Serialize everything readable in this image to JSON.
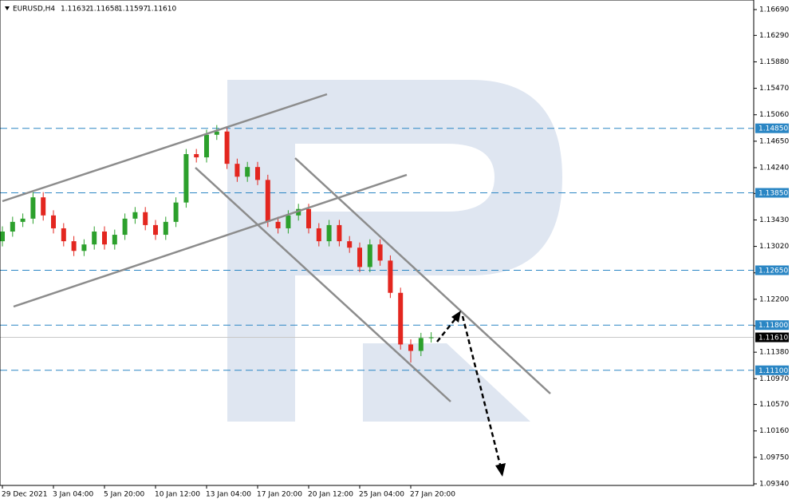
{
  "chart_data": {
    "type": "candlestick",
    "title": "EURUSD,H4",
    "quote": [
      "1.11632",
      "1.11658",
      "1.11597",
      "1.11610"
    ],
    "categories": [
      "29 Dec 2021",
      null,
      null,
      null,
      null,
      "3 Jan 04:00",
      null,
      null,
      null,
      null,
      "5 Jan 20:00",
      null,
      null,
      null,
      null,
      "10 Jan 12:00",
      null,
      null,
      null,
      null,
      "13 Jan 04:00",
      null,
      null,
      null,
      null,
      "17 Jan 20:00",
      null,
      null,
      null,
      null,
      "20 Jan 12:00",
      null,
      null,
      null,
      null,
      "25 Jan 04:00",
      null,
      null,
      null,
      null,
      "27 Jan 20:00",
      null,
      null
    ],
    "open": [
      1.131,
      1.1325,
      1.134,
      1.1345,
      1.1378,
      1.135,
      1.133,
      1.131,
      1.1295,
      1.1305,
      1.1325,
      1.1305,
      1.132,
      1.1345,
      1.1355,
      1.1335,
      1.132,
      1.134,
      1.137,
      1.1445,
      1.144,
      1.1475,
      1.148,
      1.143,
      1.141,
      1.1425,
      1.1405,
      1.134,
      1.133,
      1.135,
      1.136,
      1.133,
      1.131,
      1.1335,
      1.131,
      1.13,
      1.127,
      1.1305,
      1.128,
      1.123,
      1.115,
      1.114,
      1.116
    ],
    "high": [
      1.1333,
      1.1348,
      1.1353,
      1.1386,
      1.1386,
      1.1358,
      1.1338,
      1.1318,
      1.1313,
      1.1333,
      1.1333,
      1.1328,
      1.1353,
      1.1363,
      1.1363,
      1.1343,
      1.1348,
      1.1378,
      1.1453,
      1.1453,
      1.1483,
      1.149,
      1.1488,
      1.1438,
      1.1433,
      1.1433,
      1.1413,
      1.1348,
      1.1358,
      1.1368,
      1.1368,
      1.1338,
      1.1343,
      1.1343,
      1.1318,
      1.1308,
      1.1313,
      1.1313,
      1.1288,
      1.1238,
      1.1158,
      1.1168,
      1.1169
    ],
    "low": [
      1.1302,
      1.1317,
      1.1332,
      1.1337,
      1.1342,
      1.1322,
      1.1302,
      1.1287,
      1.1287,
      1.1297,
      1.1297,
      1.1297,
      1.1312,
      1.1337,
      1.1327,
      1.1312,
      1.1312,
      1.1332,
      1.1362,
      1.1432,
      1.1432,
      1.1467,
      1.1422,
      1.1402,
      1.1402,
      1.1397,
      1.1332,
      1.1322,
      1.1322,
      1.1342,
      1.1322,
      1.1302,
      1.1302,
      1.1302,
      1.1292,
      1.1262,
      1.1262,
      1.1272,
      1.1222,
      1.1142,
      1.1122,
      1.1132,
      1.1153
    ],
    "close": [
      1.1325,
      1.134,
      1.1345,
      1.1378,
      1.135,
      1.133,
      1.131,
      1.1295,
      1.1305,
      1.1325,
      1.1305,
      1.132,
      1.1345,
      1.1355,
      1.1335,
      1.132,
      1.134,
      1.137,
      1.1445,
      1.144,
      1.1475,
      1.148,
      1.143,
      1.141,
      1.1425,
      1.1405,
      1.134,
      1.133,
      1.135,
      1.136,
      1.133,
      1.131,
      1.1335,
      1.131,
      1.13,
      1.127,
      1.1305,
      1.128,
      1.123,
      1.115,
      1.114,
      1.116,
      1.1161
    ],
    "up_color": "#2ca02c",
    "down_color": "#e3261f",
    "ylim": [
      1.0934,
      1.1669
    ],
    "yticks": [
      {
        "value": 1.1669,
        "label": "1.16690"
      },
      {
        "value": 1.1629,
        "label": "1.16290"
      },
      {
        "value": 1.1588,
        "label": "1.15880"
      },
      {
        "value": 1.1547,
        "label": "1.15470"
      },
      {
        "value": 1.1506,
        "label": "1.15060"
      },
      {
        "value": 1.1465,
        "label": "1.14650"
      },
      {
        "value": 1.1424,
        "label": "1.14240"
      },
      {
        "value": 1.1384,
        "label": "1.13840"
      },
      {
        "value": 1.1343,
        "label": "1.13430"
      },
      {
        "value": 1.1302,
        "label": "1.13020"
      },
      {
        "value": 1.1261,
        "label": "1.12610"
      },
      {
        "value": 1.122,
        "label": "1.12200"
      },
      {
        "value": 1.1179,
        "label": "1.11790"
      },
      {
        "value": 1.1138,
        "label": "1.11380"
      },
      {
        "value": 1.1097,
        "label": "1.10970"
      },
      {
        "value": 1.1057,
        "label": "1.10570"
      },
      {
        "value": 1.1016,
        "label": "1.10160"
      },
      {
        "value": 1.0975,
        "label": "1.09750"
      },
      {
        "value": 1.0934,
        "label": "1.09340"
      }
    ],
    "levels": [
      {
        "value": 1.1485,
        "label": "1.14850"
      },
      {
        "value": 1.1385,
        "label": "1.13850"
      },
      {
        "value": 1.1265,
        "label": "1.12650"
      },
      {
        "value": 1.118,
        "label": "1.11800"
      },
      {
        "value": 1.111,
        "label": "1.11100"
      }
    ],
    "level_color": "#2a86c4",
    "current": {
      "value": 1.1161,
      "label": "1.11610"
    }
  }
}
